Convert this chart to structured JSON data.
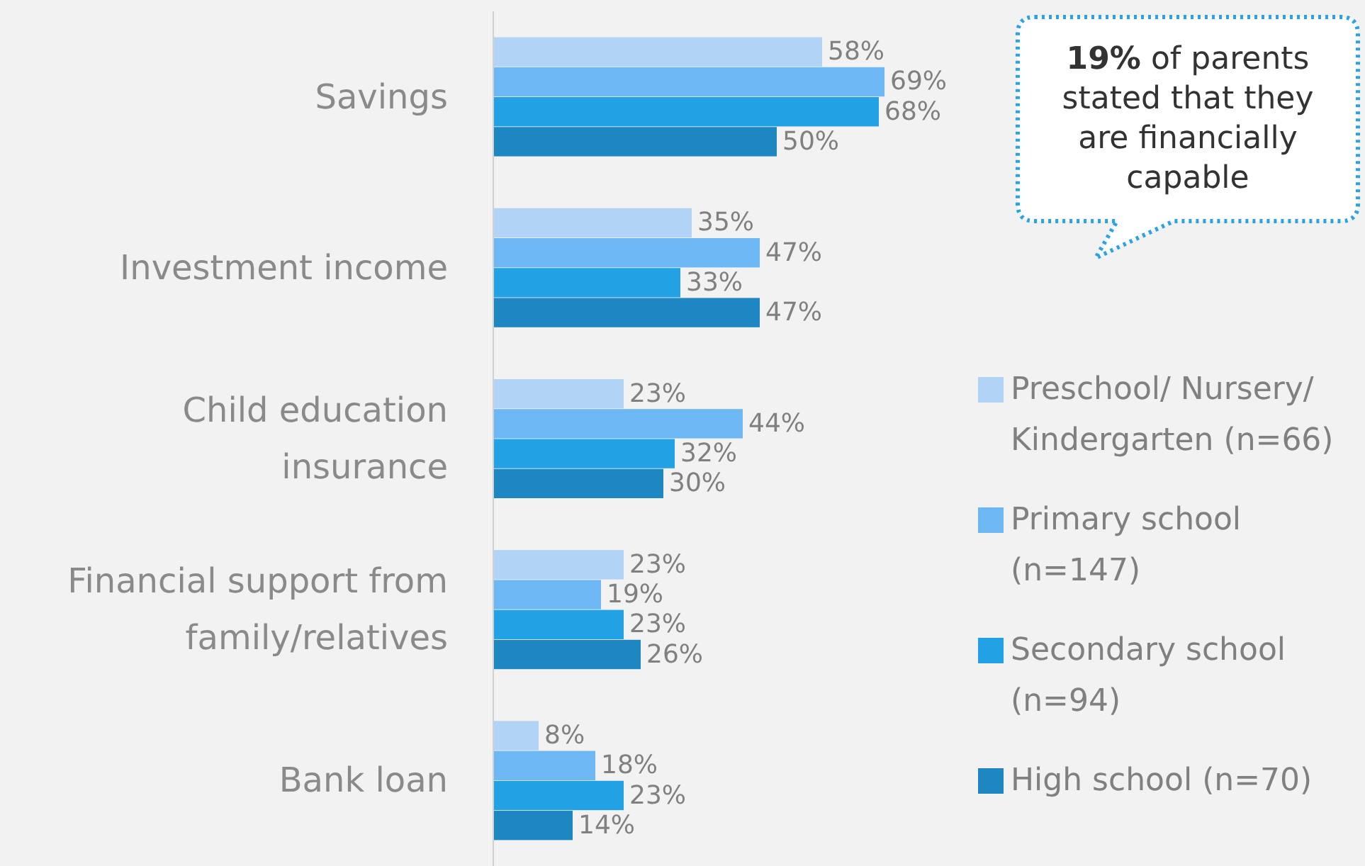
{
  "chart_data": {
    "type": "bar",
    "orientation": "horizontal",
    "categories": [
      "Savings",
      "Investment income",
      "Child education insurance",
      "Financial support from family/relatives",
      "Bank loan"
    ],
    "series": [
      {
        "name": "Preschool/ Nursery/ Kindergarten (n=66)",
        "color": "#b0d3f6",
        "values": [
          58,
          35,
          23,
          23,
          8
        ],
        "value_labels": [
          "58%",
          "35%",
          "23%",
          "23%",
          "8%"
        ]
      },
      {
        "name": "Primary school (n=147)",
        "color": "#6db8f2",
        "values": [
          69,
          47,
          44,
          19,
          18
        ],
        "value_labels": [
          "69%",
          "47%",
          "44%",
          "19%",
          "18%"
        ]
      },
      {
        "name": "Secondary school (n=94)",
        "color": "#22a1e4",
        "values": [
          68,
          33,
          32,
          23,
          23
        ],
        "value_labels": [
          "68%",
          "33%",
          "32%",
          "23%",
          "23%"
        ]
      },
      {
        "name": "High school (n=70)",
        "color": "#1e87c2",
        "values": [
          50,
          47,
          30,
          26,
          14
        ],
        "value_labels": [
          "50%",
          "47%",
          "30%",
          "26%",
          "14%"
        ]
      }
    ],
    "legend": "right",
    "annotations": [
      "19% of parents stated that they are financially capable"
    ]
  }
}
